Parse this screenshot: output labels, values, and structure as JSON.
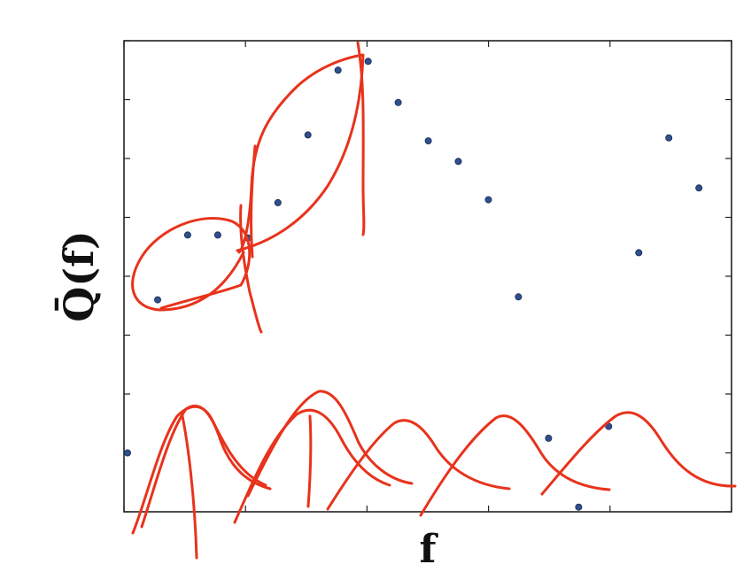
{
  "chart_data": {
    "type": "scatter",
    "xlabel": "f",
    "ylabel": "Q̄(f)",
    "xlim": [
      0,
      20
    ],
    "ylim": [
      0,
      8
    ],
    "grid": false,
    "series": [
      {
        "x": [
          0,
          1,
          2,
          3,
          4,
          5,
          6,
          7,
          8,
          9,
          10,
          11,
          12,
          13,
          14,
          15,
          16,
          17,
          18,
          19
        ],
        "values": [
          1.0,
          3.6,
          4.7,
          4.7,
          4.65,
          5.25,
          6.4,
          7.5,
          7.65,
          6.95,
          6.3,
          5.95,
          5.3,
          3.65,
          1.25,
          0.08,
          1.45,
          4.4,
          6.35,
          5.5
        ]
      }
    ],
    "annotations": {
      "color": "#e8331c",
      "description_visible": false
    }
  }
}
